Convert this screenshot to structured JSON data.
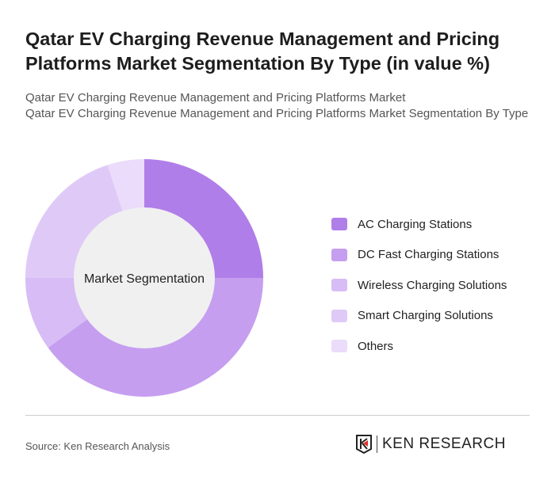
{
  "title": "Qatar EV Charging Revenue Management and Pricing Platforms Market Segmentation By Type (in value %)",
  "subtitle1": "Qatar EV Charging Revenue Management and Pricing Platforms Market",
  "subtitle2": "Qatar EV Charging Revenue Management and Pricing Platforms Market Segmentation By Type",
  "source": "Source: Ken Research Analysis",
  "logo_text": "KEN RESEARCH",
  "chart_data": {
    "type": "pie",
    "variant": "donut",
    "center_label": "Market Segmentation",
    "categories": [
      "AC Charging Stations",
      "DC Fast Charging Stations",
      "Wireless Charging Solutions",
      "Smart Charging Solutions",
      "Others"
    ],
    "values": [
      25,
      40,
      10,
      20,
      5
    ],
    "colors": [
      "#b07ee8",
      "#c59ef0",
      "#d7bcf5",
      "#dfcaf7",
      "#eadcfa"
    ],
    "legend_position": "right"
  }
}
